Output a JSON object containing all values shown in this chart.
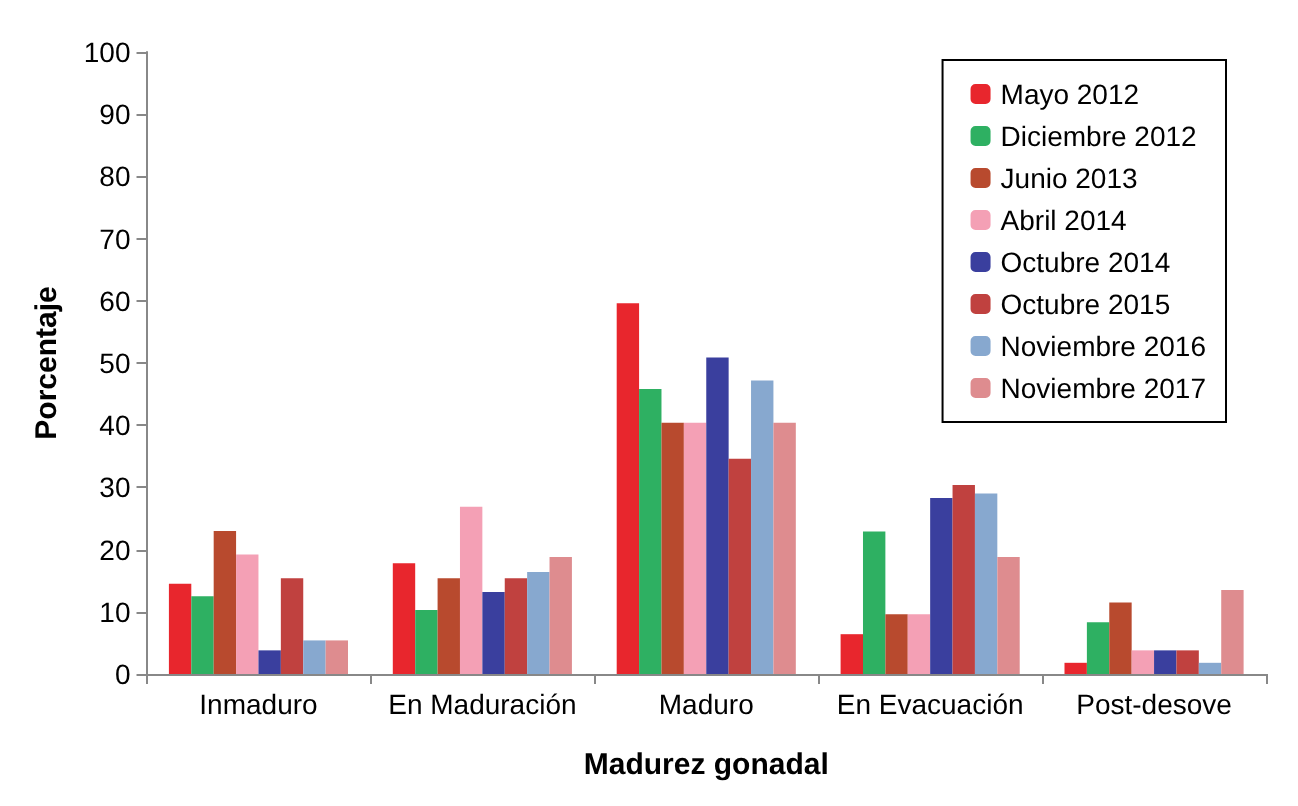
{
  "chart_data": {
    "type": "bar",
    "xlabel": "Madurez gonadal",
    "ylabel": "Porcentaje",
    "categories": [
      "Inmaduro",
      "En Maduración",
      "Maduro",
      "En Evacuación",
      "Post-desove"
    ],
    "series": [
      {
        "name": "Mayo 2012",
        "color": "#e8262d",
        "values": [
          14.5,
          17.8,
          59.6,
          6.4,
          1.8
        ]
      },
      {
        "name": "Diciembre 2012",
        "color": "#2eb062",
        "values": [
          12.5,
          10.3,
          45.8,
          22.9,
          8.3
        ]
      },
      {
        "name": "Junio 2013",
        "color": "#b84a2e",
        "values": [
          23,
          15.4,
          40.4,
          9.6,
          11.5
        ]
      },
      {
        "name": "Abril 2014",
        "color": "#f4a0b5",
        "values": [
          19.2,
          26.9,
          40.4,
          9.6,
          3.8
        ]
      },
      {
        "name": "Octubre 2014",
        "color": "#3a3f9e",
        "values": [
          3.8,
          13.2,
          50.9,
          28.3,
          3.8
        ]
      },
      {
        "name": "Octubre 2015",
        "color": "#c0413f",
        "values": [
          15.4,
          15.4,
          34.6,
          30.4,
          3.8
        ]
      },
      {
        "name": "Noviembre 2016",
        "color": "#87a8cf",
        "values": [
          5.4,
          16.4,
          47.2,
          29,
          1.8
        ]
      },
      {
        "name": "Noviembre 2017",
        "color": "#de8c8f",
        "values": [
          5.4,
          18.8,
          40.4,
          18.8,
          13.5
        ]
      }
    ],
    "ylim": [
      0,
      100
    ],
    "yticks": [
      0,
      10,
      20,
      30,
      40,
      50,
      60,
      70,
      80,
      90,
      100
    ],
    "grid": false,
    "legend": "top right"
  }
}
